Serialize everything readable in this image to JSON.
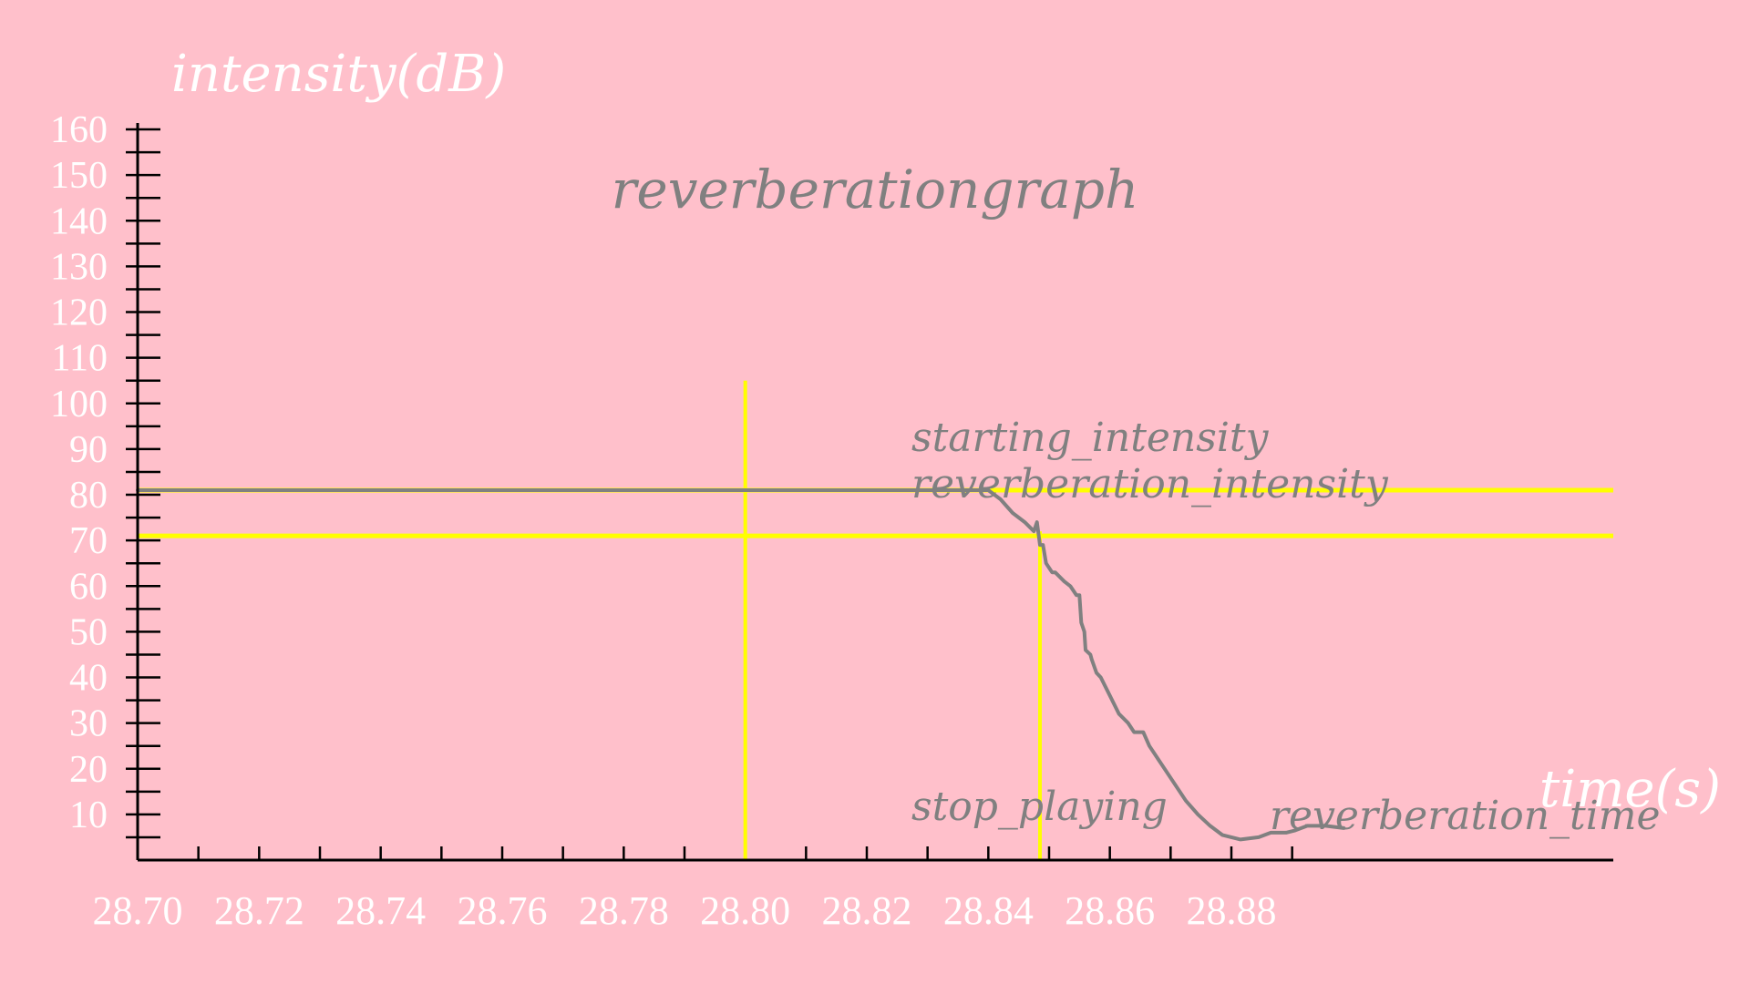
{
  "colors": {
    "background": "#ffc0cb",
    "axis": "#000000",
    "tick_label": "#ffffff",
    "curve": "#808080",
    "marker_line": "#ffff00",
    "annotation": "#808080"
  },
  "chart_data": {
    "type": "line",
    "title": "reverberationgraph",
    "xlabel": "time(s)",
    "ylabel": "intensity(dB)",
    "xlim": [
      28.7,
      28.9
    ],
    "ylim": [
      0,
      160
    ],
    "x_ticks": [
      28.7,
      28.72,
      28.74,
      28.76,
      28.78,
      28.8,
      28.82,
      28.84,
      28.86,
      28.88
    ],
    "x_tick_labels": [
      "28.70",
      "28.72",
      "28.74",
      "28.76",
      "28.78",
      "28.80",
      "28.82",
      "28.84",
      "28.86",
      "28.88"
    ],
    "y_ticks": [
      10,
      20,
      30,
      40,
      50,
      60,
      70,
      80,
      90,
      100,
      110,
      120,
      130,
      140,
      150,
      160
    ],
    "y_tick_labels": [
      "10",
      "20",
      "30",
      "40",
      "50",
      "60",
      "70",
      "80",
      "90",
      "100",
      "110",
      "120",
      "130",
      "140",
      "150",
      "160"
    ],
    "grid": false,
    "series": [
      {
        "x": [
          28.7,
          28.72,
          28.74,
          28.76,
          28.78,
          28.8,
          28.82,
          28.84,
          28.842,
          28.844,
          28.846,
          28.8475,
          28.848,
          28.8485,
          28.849,
          28.8495,
          28.8505,
          28.851,
          28.8525,
          28.8535,
          28.8545,
          28.855,
          28.8553,
          28.8558,
          28.856,
          28.8568,
          28.857,
          28.8578,
          28.8585,
          28.86,
          28.8615,
          28.863,
          28.864,
          28.8655,
          28.8665,
          28.8685,
          28.8705,
          28.8725,
          28.8745,
          28.8765,
          28.8785,
          28.8815,
          28.8845,
          28.8865,
          28.889,
          28.8905,
          28.8925,
          28.8955,
          28.8985
        ],
        "y": [
          81,
          81,
          81,
          81,
          81,
          81,
          81,
          81,
          79,
          76,
          74,
          72,
          74,
          69,
          69,
          65,
          63,
          63,
          61,
          60,
          58,
          58,
          52,
          50,
          46,
          45,
          44,
          41,
          40,
          36,
          32,
          30,
          28,
          28,
          25,
          21,
          17,
          13,
          10,
          7.5,
          5.5,
          4.5,
          5,
          6,
          6,
          6.5,
          7.5,
          7.5,
          7
        ]
      }
    ],
    "reference_lines": {
      "horizontal": [
        {
          "y": 81,
          "label": "starting_intensity"
        },
        {
          "y": 71,
          "label": "reverberation_intensity"
        }
      ],
      "vertical": [
        {
          "x": 28.8,
          "y_top": 105,
          "label": "stop_playing"
        },
        {
          "x": 28.8485,
          "y_top": 72,
          "label": "reverberation_time"
        }
      ]
    }
  }
}
